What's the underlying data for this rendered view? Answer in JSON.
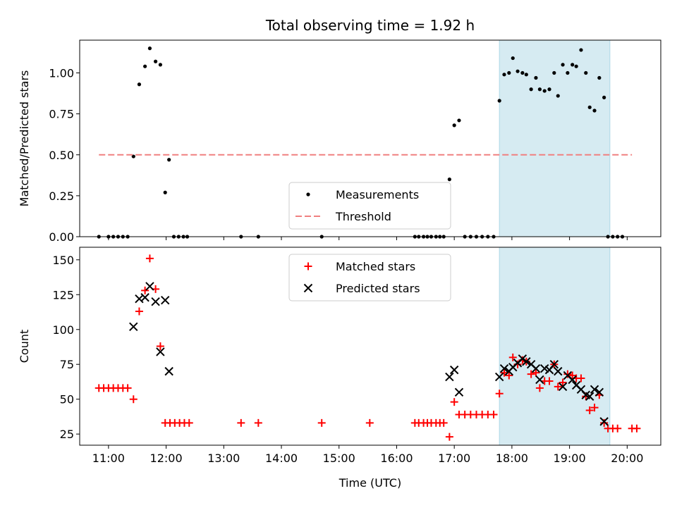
{
  "colors": {
    "measurement": "#000000",
    "threshold": "#f08080",
    "matched": "#ff0000",
    "predicted": "#000000",
    "highlight": "#add8e6"
  },
  "chart_data": [
    {
      "type": "scatter",
      "title": "Total observing time = 1.92 h",
      "ylabel": "Matched/Predicted stars",
      "xlabel": "",
      "xlim": [
        "10:30",
        "20:35"
      ],
      "ylim": [
        0,
        1.2
      ],
      "yticks": [
        "0.00",
        "0.25",
        "0.50",
        "0.75",
        "1.00"
      ],
      "highlight_span": [
        "17:47",
        "19:42"
      ],
      "legend_position": "lower center",
      "series": [
        {
          "name": "Measurements",
          "marker": "dot",
          "points": [
            [
              "10:50",
              0
            ],
            [
              "11:00",
              0
            ],
            [
              "11:05",
              0
            ],
            [
              "11:10",
              0
            ],
            [
              "11:15",
              0
            ],
            [
              "11:20",
              0
            ],
            [
              "11:26",
              0.49
            ],
            [
              "11:32",
              0.93
            ],
            [
              "11:38",
              1.04
            ],
            [
              "11:43",
              1.15
            ],
            [
              "11:49",
              1.07
            ],
            [
              "11:54",
              1.05
            ],
            [
              "11:59",
              0.27
            ],
            [
              "12:03",
              0.47
            ],
            [
              "12:08",
              0
            ],
            [
              "12:13",
              0
            ],
            [
              "12:18",
              0
            ],
            [
              "12:22",
              0
            ],
            [
              "13:18",
              0
            ],
            [
              "13:36",
              0
            ],
            [
              "14:42",
              0
            ],
            [
              "16:19",
              0
            ],
            [
              "16:23",
              0
            ],
            [
              "16:28",
              0
            ],
            [
              "16:32",
              0
            ],
            [
              "16:36",
              0
            ],
            [
              "16:41",
              0
            ],
            [
              "16:45",
              0
            ],
            [
              "16:49",
              0
            ],
            [
              "16:55",
              0.35
            ],
            [
              "17:00",
              0.68
            ],
            [
              "17:05",
              0.71
            ],
            [
              "17:11",
              0
            ],
            [
              "17:17",
              0
            ],
            [
              "17:23",
              0
            ],
            [
              "17:29",
              0
            ],
            [
              "17:35",
              0
            ],
            [
              "17:41",
              0
            ],
            [
              "17:47",
              0.83
            ],
            [
              "17:52",
              0.99
            ],
            [
              "17:57",
              1.0
            ],
            [
              "18:01",
              1.09
            ],
            [
              "18:06",
              1.01
            ],
            [
              "18:11",
              1.0
            ],
            [
              "18:15",
              0.99
            ],
            [
              "18:20",
              0.9
            ],
            [
              "18:25",
              0.97
            ],
            [
              "18:29",
              0.9
            ],
            [
              "18:34",
              0.89
            ],
            [
              "18:39",
              0.9
            ],
            [
              "18:44",
              1.0
            ],
            [
              "18:48",
              0.86
            ],
            [
              "18:53",
              1.05
            ],
            [
              "18:58",
              1.0
            ],
            [
              "19:03",
              1.05
            ],
            [
              "19:07",
              1.04
            ],
            [
              "19:12",
              1.14
            ],
            [
              "19:17",
              1.0
            ],
            [
              "19:21",
              0.79
            ],
            [
              "19:26",
              0.77
            ],
            [
              "19:31",
              0.97
            ],
            [
              "19:36",
              0.85
            ],
            [
              "19:40",
              0
            ],
            [
              "19:45",
              0
            ],
            [
              "19:50",
              0
            ],
            [
              "19:55",
              0
            ]
          ]
        },
        {
          "name": "Threshold",
          "marker": "dashed-line",
          "points": [
            [
              "10:50",
              0.5
            ],
            [
              "20:05",
              0.5
            ]
          ]
        }
      ]
    },
    {
      "type": "scatter",
      "title": "",
      "ylabel": "Count",
      "xlabel": "Time (UTC)",
      "xlim": [
        "10:30",
        "20:35"
      ],
      "ylim": [
        17,
        159
      ],
      "yticks": [
        "25",
        "50",
        "75",
        "100",
        "125",
        "150"
      ],
      "xticks": [
        "11:00",
        "12:00",
        "13:00",
        "14:00",
        "15:00",
        "16:00",
        "17:00",
        "18:00",
        "19:00",
        "20:00"
      ],
      "highlight_span": [
        "17:47",
        "19:42"
      ],
      "legend_position": "upper center",
      "series": [
        {
          "name": "Matched stars",
          "marker": "plus",
          "points": [
            [
              "10:50",
              58
            ],
            [
              "10:55",
              58
            ],
            [
              "11:00",
              58
            ],
            [
              "11:05",
              58
            ],
            [
              "11:10",
              58
            ],
            [
              "11:15",
              58
            ],
            [
              "11:20",
              58
            ],
            [
              "11:26",
              50
            ],
            [
              "11:32",
              113
            ],
            [
              "11:38",
              128
            ],
            [
              "11:43",
              151
            ],
            [
              "11:49",
              129
            ],
            [
              "11:54",
              88
            ],
            [
              "11:59",
              33
            ],
            [
              "12:04",
              33
            ],
            [
              "12:09",
              33
            ],
            [
              "12:14",
              33
            ],
            [
              "12:19",
              33
            ],
            [
              "12:24",
              33
            ],
            [
              "13:18",
              33
            ],
            [
              "13:36",
              33
            ],
            [
              "14:42",
              33
            ],
            [
              "15:32",
              33
            ],
            [
              "16:19",
              33
            ],
            [
              "16:23",
              33
            ],
            [
              "16:28",
              33
            ],
            [
              "16:32",
              33
            ],
            [
              "16:36",
              33
            ],
            [
              "16:41",
              33
            ],
            [
              "16:45",
              33
            ],
            [
              "16:49",
              33
            ],
            [
              "16:55",
              23
            ],
            [
              "17:00",
              48
            ],
            [
              "17:05",
              39
            ],
            [
              "17:11",
              39
            ],
            [
              "17:17",
              39
            ],
            [
              "17:23",
              39
            ],
            [
              "17:29",
              39
            ],
            [
              "17:35",
              39
            ],
            [
              "17:41",
              39
            ],
            [
              "17:47",
              54
            ],
            [
              "17:52",
              69
            ],
            [
              "17:57",
              67
            ],
            [
              "18:01",
              80
            ],
            [
              "18:06",
              75
            ],
            [
              "18:11",
              78
            ],
            [
              "18:15",
              77
            ],
            [
              "18:20",
              68
            ],
            [
              "18:25",
              69
            ],
            [
              "18:29",
              58
            ],
            [
              "18:34",
              63
            ],
            [
              "18:39",
              63
            ],
            [
              "18:44",
              75
            ],
            [
              "18:48",
              59
            ],
            [
              "18:53",
              62
            ],
            [
              "18:58",
              68
            ],
            [
              "19:03",
              67
            ],
            [
              "19:07",
              65
            ],
            [
              "19:12",
              65
            ],
            [
              "19:17",
              52
            ],
            [
              "19:21",
              42
            ],
            [
              "19:26",
              44
            ],
            [
              "19:31",
              53
            ],
            [
              "19:36",
              33
            ],
            [
              "19:40",
              29
            ],
            [
              "19:45",
              29
            ],
            [
              "19:50",
              29
            ],
            [
              "20:05",
              29
            ],
            [
              "20:10",
              29
            ]
          ]
        },
        {
          "name": "Predicted stars",
          "marker": "x",
          "points": [
            [
              "11:26",
              102
            ],
            [
              "11:32",
              122
            ],
            [
              "11:38",
              123
            ],
            [
              "11:43",
              131
            ],
            [
              "11:49",
              120
            ],
            [
              "11:54",
              84
            ],
            [
              "11:59",
              121
            ],
            [
              "12:03",
              70
            ],
            [
              "16:55",
              66
            ],
            [
              "17:00",
              71
            ],
            [
              "17:05",
              55
            ],
            [
              "17:47",
              66
            ],
            [
              "17:52",
              72
            ],
            [
              "17:57",
              70
            ],
            [
              "18:01",
              73
            ],
            [
              "18:06",
              76
            ],
            [
              "18:11",
              79
            ],
            [
              "18:15",
              77
            ],
            [
              "18:20",
              75
            ],
            [
              "18:25",
              72
            ],
            [
              "18:29",
              64
            ],
            [
              "18:34",
              72
            ],
            [
              "18:39",
              71
            ],
            [
              "18:44",
              75
            ],
            [
              "18:48",
              70
            ],
            [
              "18:53",
              59
            ],
            [
              "18:58",
              67
            ],
            [
              "19:03",
              64
            ],
            [
              "19:07",
              60
            ],
            [
              "19:12",
              57
            ],
            [
              "19:17",
              53
            ],
            [
              "19:21",
              52
            ],
            [
              "19:26",
              57
            ],
            [
              "19:31",
              55
            ],
            [
              "19:36",
              34
            ]
          ]
        }
      ]
    }
  ]
}
